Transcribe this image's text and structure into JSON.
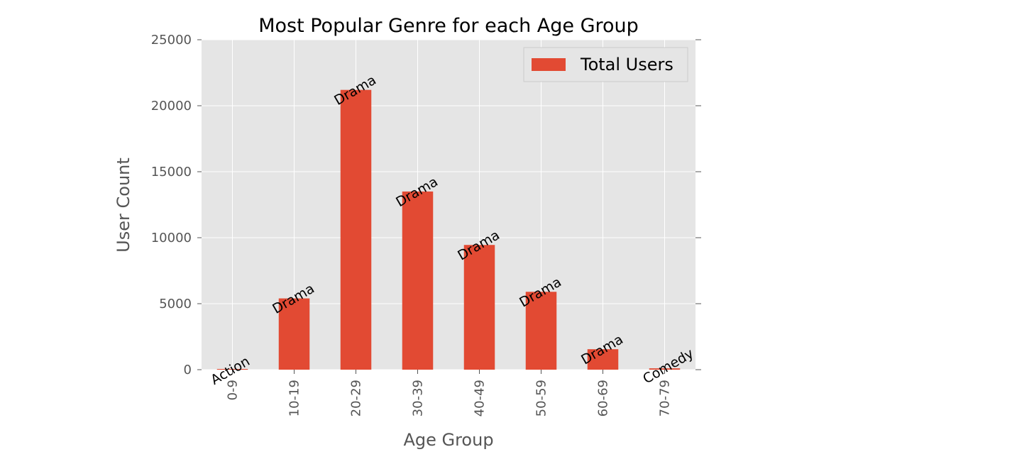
{
  "colors": {
    "bar": "#e24a33",
    "plot_background": "#e5e5e5",
    "grid": "#ffffff"
  },
  "chart_data": {
    "type": "bar",
    "title": "Most Popular Genre for each Age Group",
    "xlabel": "Age Group",
    "ylabel": "User Count",
    "categories": [
      "0-9",
      "10-19",
      "20-29",
      "30-39",
      "40-49",
      "50-59",
      "60-69",
      "70-79"
    ],
    "series": [
      {
        "name": "Total Users",
        "values": [
          20,
          5400,
          21200,
          13500,
          9450,
          5900,
          1550,
          100
        ]
      }
    ],
    "annotations": [
      "Action",
      "Drama",
      "Drama",
      "Drama",
      "Drama",
      "Drama",
      "Drama",
      "Comedy"
    ],
    "ylim": [
      0,
      25000
    ],
    "yticks": [
      0,
      5000,
      10000,
      15000,
      20000,
      25000
    ],
    "grid": true,
    "legend_position": "top-right",
    "x_tick_rotation": 90,
    "annotation_rotation": -30
  }
}
